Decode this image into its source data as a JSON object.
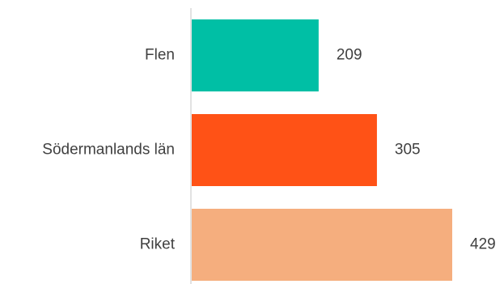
{
  "chart_data": {
    "type": "bar",
    "orientation": "horizontal",
    "categories": [
      "Flen",
      "Södermanlands län",
      "Riket"
    ],
    "values": [
      209,
      305,
      429
    ],
    "value_labels": [
      "209",
      "305",
      "429"
    ],
    "colors": [
      "#00BFA5",
      "#FF5216",
      "#F5AE7E"
    ],
    "axis_color": "#D9D9D9",
    "text_color": "#404040",
    "title": "",
    "xlabel": "",
    "ylabel": "",
    "xlim": [
      0,
      429
    ],
    "grid": false,
    "legend": "none"
  }
}
